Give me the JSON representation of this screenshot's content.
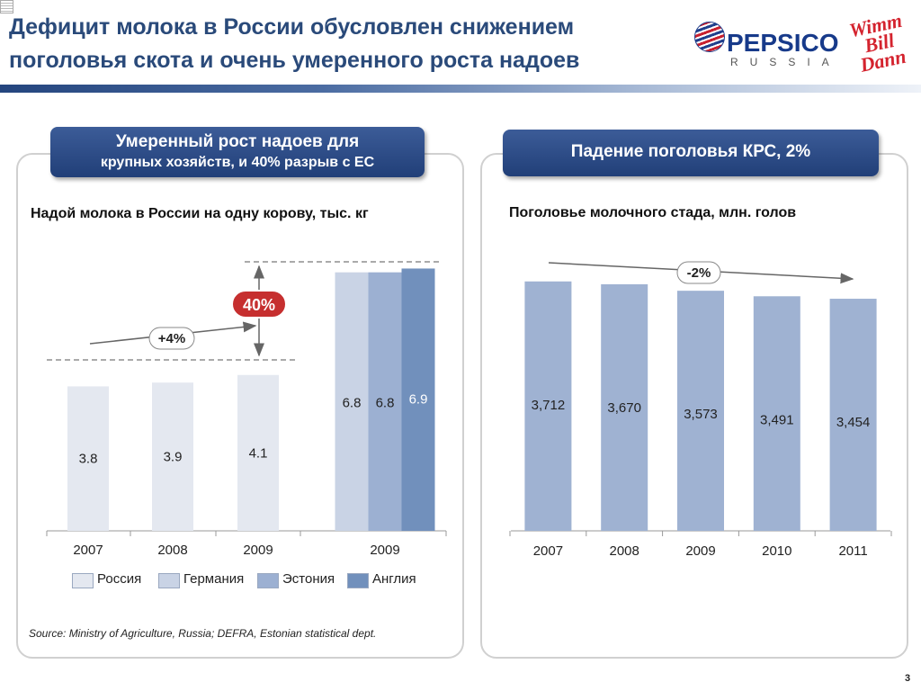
{
  "title": {
    "line1": "Дефицит молока в России обусловлен снижением",
    "line2": "поголовья скота и очень умеренного роста надоев"
  },
  "logos": {
    "pepsico": "PEPSICO",
    "pepsico_sub": "RUSSIA",
    "wbd": [
      "Wimm",
      "Bill",
      "Dann"
    ]
  },
  "left_panel": {
    "banner_line1": "Умеренный рост надоев для",
    "banner_line2": "крупных хозяйств, и 40% разрыв с ЕС",
    "chart_title": "Надой молока в России на одну корову, тыс. кг",
    "annotation_growth": "+4%",
    "annotation_gap": "40%",
    "legend": [
      {
        "label": "Россия",
        "color": "#e4e8f0"
      },
      {
        "label": "Германия",
        "color": "#c9d3e5"
      },
      {
        "label": "Эстония",
        "color": "#9cb0d2"
      },
      {
        "label": "Англия",
        "color": "#7190bc"
      }
    ],
    "source": "Source: Ministry of Agriculture, Russia; DEFRA, Estonian statistical dept."
  },
  "right_panel": {
    "banner_line1": "Падение поголовья КРС, 2%",
    "chart_title": "Поголовье молочного стада, млн. голов",
    "annotation_trend": "-2%"
  },
  "page_number": "3",
  "chart_data": [
    {
      "type": "bar",
      "title": "Надой молока в России на одну корову, тыс. кг",
      "categories": [
        "2007",
        "2008",
        "2009",
        "2009"
      ],
      "series": [
        {
          "name": "Россия",
          "values": [
            3.8,
            3.9,
            4.1,
            null
          ],
          "labels": [
            "3.8",
            "3.9",
            "4.1",
            ""
          ],
          "color": "#e4e8f0"
        },
        {
          "name": "Германия",
          "values": [
            null,
            null,
            null,
            6.8
          ],
          "labels": [
            "",
            "",
            "",
            "6.8"
          ],
          "color": "#c9d3e5"
        },
        {
          "name": "Эстония",
          "values": [
            null,
            null,
            null,
            6.8
          ],
          "labels": [
            "",
            "",
            "",
            "6.8"
          ],
          "color": "#9cb0d2"
        },
        {
          "name": "Англия",
          "values": [
            null,
            null,
            null,
            6.9
          ],
          "labels": [
            "",
            "",
            "",
            "6.9"
          ],
          "color": "#7190bc"
        }
      ],
      "ylim": [
        0,
        7.1
      ],
      "annotations": [
        "+4%",
        "40%"
      ],
      "legend_position": "bottom",
      "grid": false
    },
    {
      "type": "bar",
      "title": "Поголовье молочного стада, млн. голов",
      "categories": [
        "2007",
        "2008",
        "2009",
        "2010",
        "2011"
      ],
      "values": [
        3.712,
        3.67,
        3.573,
        3.491,
        3.454
      ],
      "labels": [
        "3,712",
        "3,670",
        "3,573",
        "3,491",
        "3,454"
      ],
      "color": "#9fb2d2",
      "ylim": [
        0,
        3.95
      ],
      "annotations": [
        "-2%"
      ],
      "grid": false
    }
  ]
}
